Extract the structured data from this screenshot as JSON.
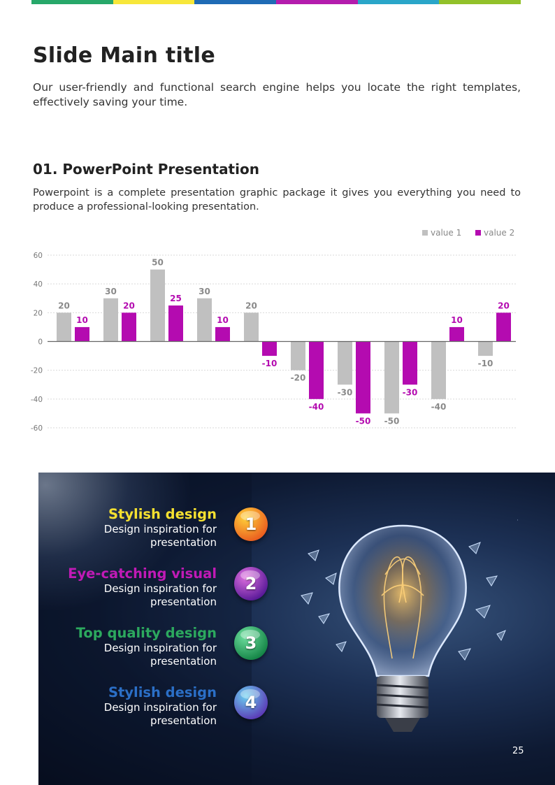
{
  "header": {
    "stripe_colors": [
      "#27a86a",
      "#f7e73a",
      "#1f6bb5",
      "#b41cad",
      "#2aa6c9",
      "#92c12a"
    ]
  },
  "title": "Slide Main title",
  "intro": "Our user-friendly and functional search engine helps you locate the right templates, effectively saving your time.",
  "section": {
    "title": "01. PowerPoint Presentation",
    "text": "Powerpoint is a complete presentation graphic package it gives you everything you need to produce a professional-looking presentation."
  },
  "chart_data": {
    "type": "bar",
    "categories": [
      "",
      "",
      "",
      "",
      "",
      "",
      "",
      "",
      "",
      ""
    ],
    "series": [
      {
        "name": "value 1",
        "color": "#c0c0c0",
        "values": [
          20,
          30,
          50,
          30,
          20,
          -20,
          -30,
          -50,
          -40,
          -10
        ]
      },
      {
        "name": "value 2",
        "color": "#b40bb0",
        "values": [
          10,
          20,
          25,
          10,
          -10,
          -40,
          -50,
          -30,
          10,
          20
        ]
      }
    ],
    "ylim": [
      -60,
      60
    ],
    "yticks": [
      60,
      40,
      20,
      0,
      -20,
      -40,
      -60
    ],
    "grid": true,
    "legend_position": "top-right",
    "title": "",
    "xlabel": "",
    "ylabel": ""
  },
  "features": [
    {
      "title": "Stylish design",
      "desc": "Design inspiration for presentation",
      "color": "#f4e030",
      "number": "1",
      "badge_colors": [
        "#ffd23a",
        "#e8501c"
      ]
    },
    {
      "title": "Eye-catching visual",
      "desc": "Design inspiration for presentation",
      "color": "#c11ab6",
      "number": "2",
      "badge_colors": [
        "#e070e0",
        "#4a1090"
      ]
    },
    {
      "title": "Top quality design",
      "desc": "Design inspiration for presentation",
      "color": "#2ca95e",
      "number": "3",
      "badge_colors": [
        "#6fe0a0",
        "#0a7a3c"
      ]
    },
    {
      "title": "Stylish design",
      "desc": "Design inspiration for presentation",
      "color": "#2b6fc6",
      "number": "4",
      "badge_colors": [
        "#6ad0f0",
        "#5a2ab0"
      ]
    }
  ],
  "photo_icon": "light-bulb-icon",
  "page_number": "25"
}
